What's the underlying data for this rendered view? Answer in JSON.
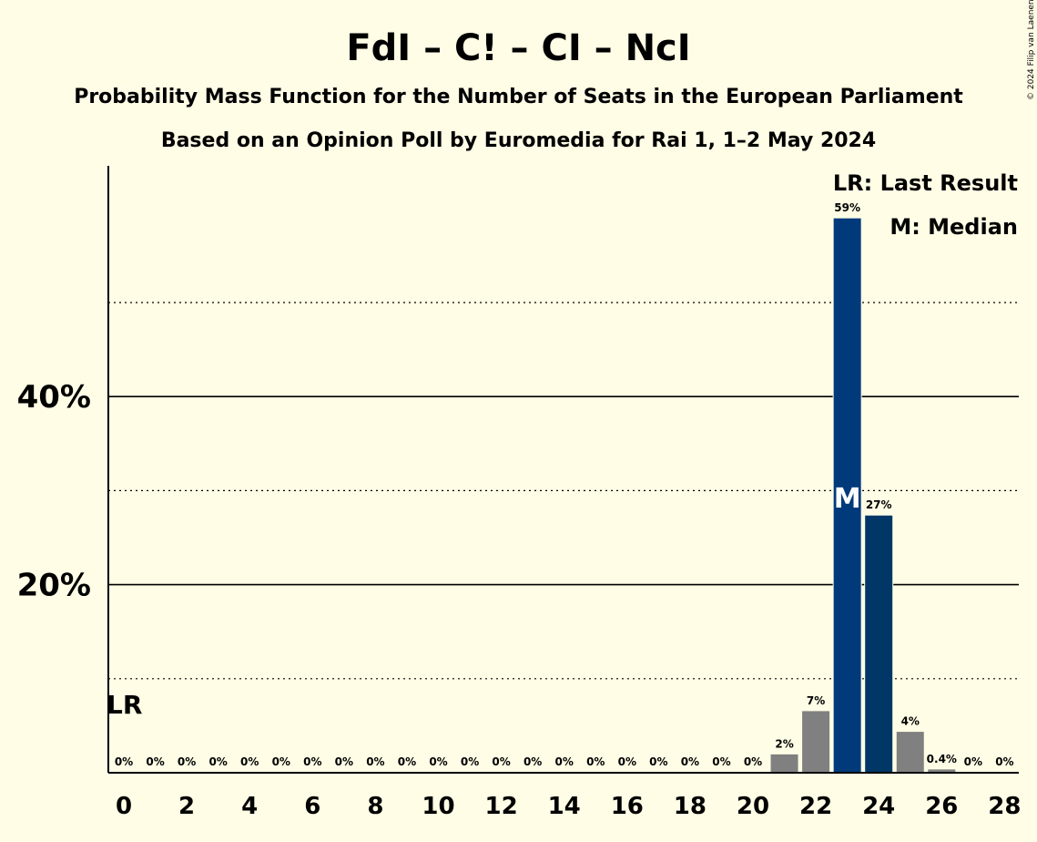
{
  "title": "FdI – C! – CI – NcI",
  "subtitle": "Probability Mass Function for the Number of Seats in the European Parliament",
  "subtitle2": "Based on an Opinion Poll by Euromedia for Rai 1, 1–2 May 2024",
  "copyright": "© 2024 Filip van Laenen",
  "legend": {
    "last_result": "LR: Last Result",
    "median": "M: Median"
  },
  "colors": {
    "background": "#fffde6",
    "bar_gray": "#808080",
    "bar_median": "#003a7a",
    "bar_above_median": "#003766"
  },
  "chart_data": {
    "type": "bar",
    "x": [
      0,
      1,
      2,
      3,
      4,
      5,
      6,
      7,
      8,
      9,
      10,
      11,
      12,
      13,
      14,
      15,
      16,
      17,
      18,
      19,
      20,
      21,
      22,
      23,
      24,
      25,
      26,
      27,
      28
    ],
    "values": [
      0,
      0,
      0,
      0,
      0,
      0,
      0,
      0,
      0,
      0,
      0,
      0,
      0,
      0,
      0,
      0,
      0,
      0,
      0,
      0,
      0,
      2,
      6.6,
      59,
      27.4,
      4.4,
      0.4,
      0,
      0
    ],
    "data_labels": [
      "0%",
      "0%",
      "0%",
      "0%",
      "0%",
      "0%",
      "0%",
      "0%",
      "0%",
      "0%",
      "0%",
      "0%",
      "0%",
      "0%",
      "0%",
      "0%",
      "0%",
      "0%",
      "0%",
      "0%",
      "0%",
      "2%",
      "7%",
      "59%",
      "27%",
      "4%",
      "0.4%",
      "0%",
      "0%"
    ],
    "x_tick_labels": [
      "0",
      "2",
      "4",
      "6",
      "8",
      "10",
      "12",
      "14",
      "16",
      "18",
      "20",
      "22",
      "24",
      "26",
      "28"
    ],
    "y_tick_labels": [
      "20%",
      "40%"
    ],
    "ylim": [
      0,
      64
    ],
    "y_major_gridlines": [
      20,
      40
    ],
    "y_minor_gridlines": [
      10,
      30,
      50
    ],
    "last_result_seat": 0,
    "last_result_label": "LR",
    "median_seat": 23,
    "median_label": "M",
    "legend_position": "top-right"
  }
}
